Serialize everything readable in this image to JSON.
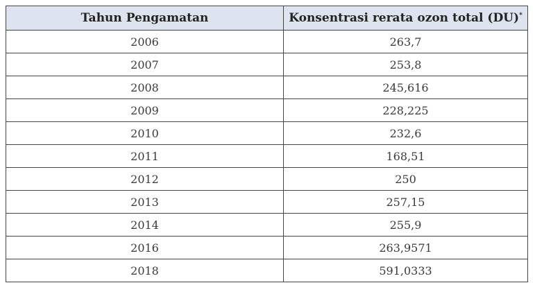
{
  "table": {
    "headers": {
      "year": "Tahun Pengamatan",
      "ozone": "Konsentrasi rerata ozon total (DU)",
      "ozone_note": "*"
    },
    "rows": [
      {
        "year": "2006",
        "value": "263,7"
      },
      {
        "year": "2007",
        "value": "253,8"
      },
      {
        "year": "2008",
        "value": "245,616"
      },
      {
        "year": "2009",
        "value": "228,225"
      },
      {
        "year": "2010",
        "value": "232,6"
      },
      {
        "year": "2011",
        "value": "168,51"
      },
      {
        "year": "2012",
        "value": "250"
      },
      {
        "year": "2013",
        "value": "257,15"
      },
      {
        "year": "2014",
        "value": "255,9"
      },
      {
        "year": "2016",
        "value": "263,9571"
      },
      {
        "year": "2018",
        "value": "591,0333"
      }
    ]
  }
}
